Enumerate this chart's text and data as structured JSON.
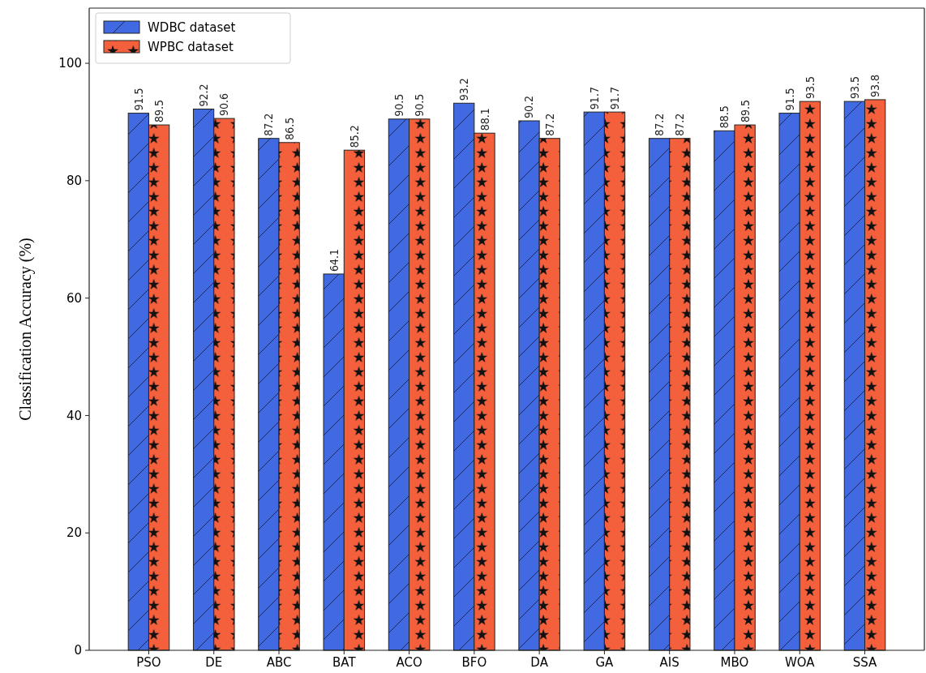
{
  "chart_data": {
    "type": "bar",
    "ylabel": "Classification Accuracy (%)",
    "categories": [
      "PSO",
      "DE",
      "ABC",
      "BAT",
      "ACO",
      "BFO",
      "DA",
      "GA",
      "AIS",
      "MBO",
      "WOA",
      "SSA"
    ],
    "series": [
      {
        "name": "WDBC dataset",
        "color": "#4169e1",
        "values": [
          91.5,
          92.2,
          87.2,
          64.1,
          90.5,
          93.2,
          90.2,
          91.7,
          87.2,
          88.5,
          91.5,
          93.5
        ]
      },
      {
        "name": "WPBC dataset",
        "color": "#f4603c",
        "values": [
          89.5,
          90.6,
          86.5,
          85.2,
          90.5,
          88.1,
          87.2,
          91.7,
          87.2,
          89.5,
          93.5,
          93.8
        ]
      }
    ],
    "ylim": [
      0,
      109.4
    ],
    "yticks": [
      0,
      20,
      40,
      60,
      80,
      100
    ],
    "legend": "top left",
    "data_labels": true
  }
}
